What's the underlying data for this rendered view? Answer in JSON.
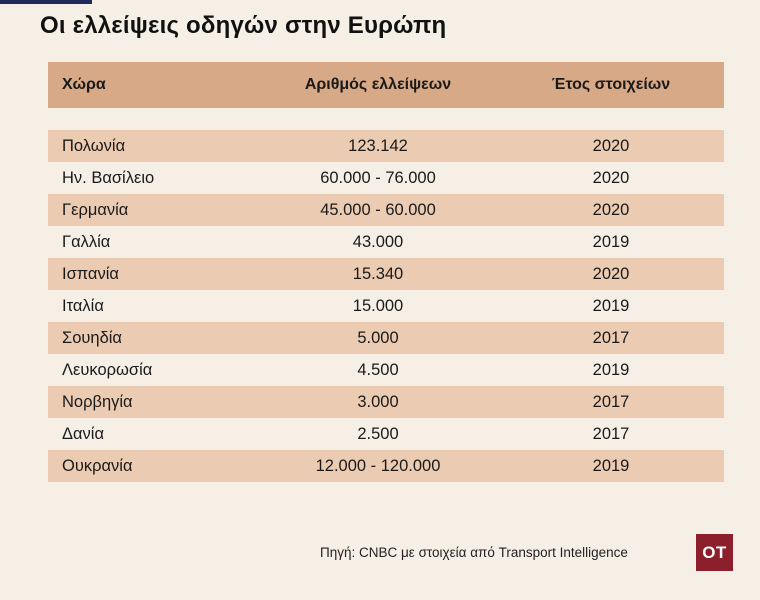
{
  "title": "Οι ελλείψεις οδηγών στην Ευρώπη",
  "table": {
    "headers": [
      "Χώρα",
      "Αριθμός ελλείψεων",
      "Έτος στοιχείων"
    ],
    "rows": [
      [
        "Πολωνία",
        "123.142",
        "2020"
      ],
      [
        "Ην. Βασίλειο",
        "60.000 - 76.000",
        "2020"
      ],
      [
        "Γερμανία",
        "45.000 - 60.000",
        "2020"
      ],
      [
        "Γαλλία",
        "43.000",
        "2019"
      ],
      [
        "Ισπανία",
        "15.340",
        "2020"
      ],
      [
        "Ιταλία",
        "15.000",
        "2019"
      ],
      [
        "Σουηδία",
        "5.000",
        "2017"
      ],
      [
        "Λευκορωσία",
        "4.500",
        "2019"
      ],
      [
        "Νορβηγία",
        "3.000",
        "2017"
      ],
      [
        "Δανία",
        "2.500",
        "2017"
      ],
      [
        "Ουκρανία",
        "12.000 - 120.000",
        "2019"
      ]
    ]
  },
  "source": "Πηγή: CNBC με στοιχεία από Transport Intelligence",
  "logo_text": "OT",
  "colors": {
    "background": "#f6efe6",
    "header": "#d8a986",
    "row_shade": "#ebcbb2",
    "logo": "#8c1f2c",
    "accent": "#1f2a5a"
  }
}
